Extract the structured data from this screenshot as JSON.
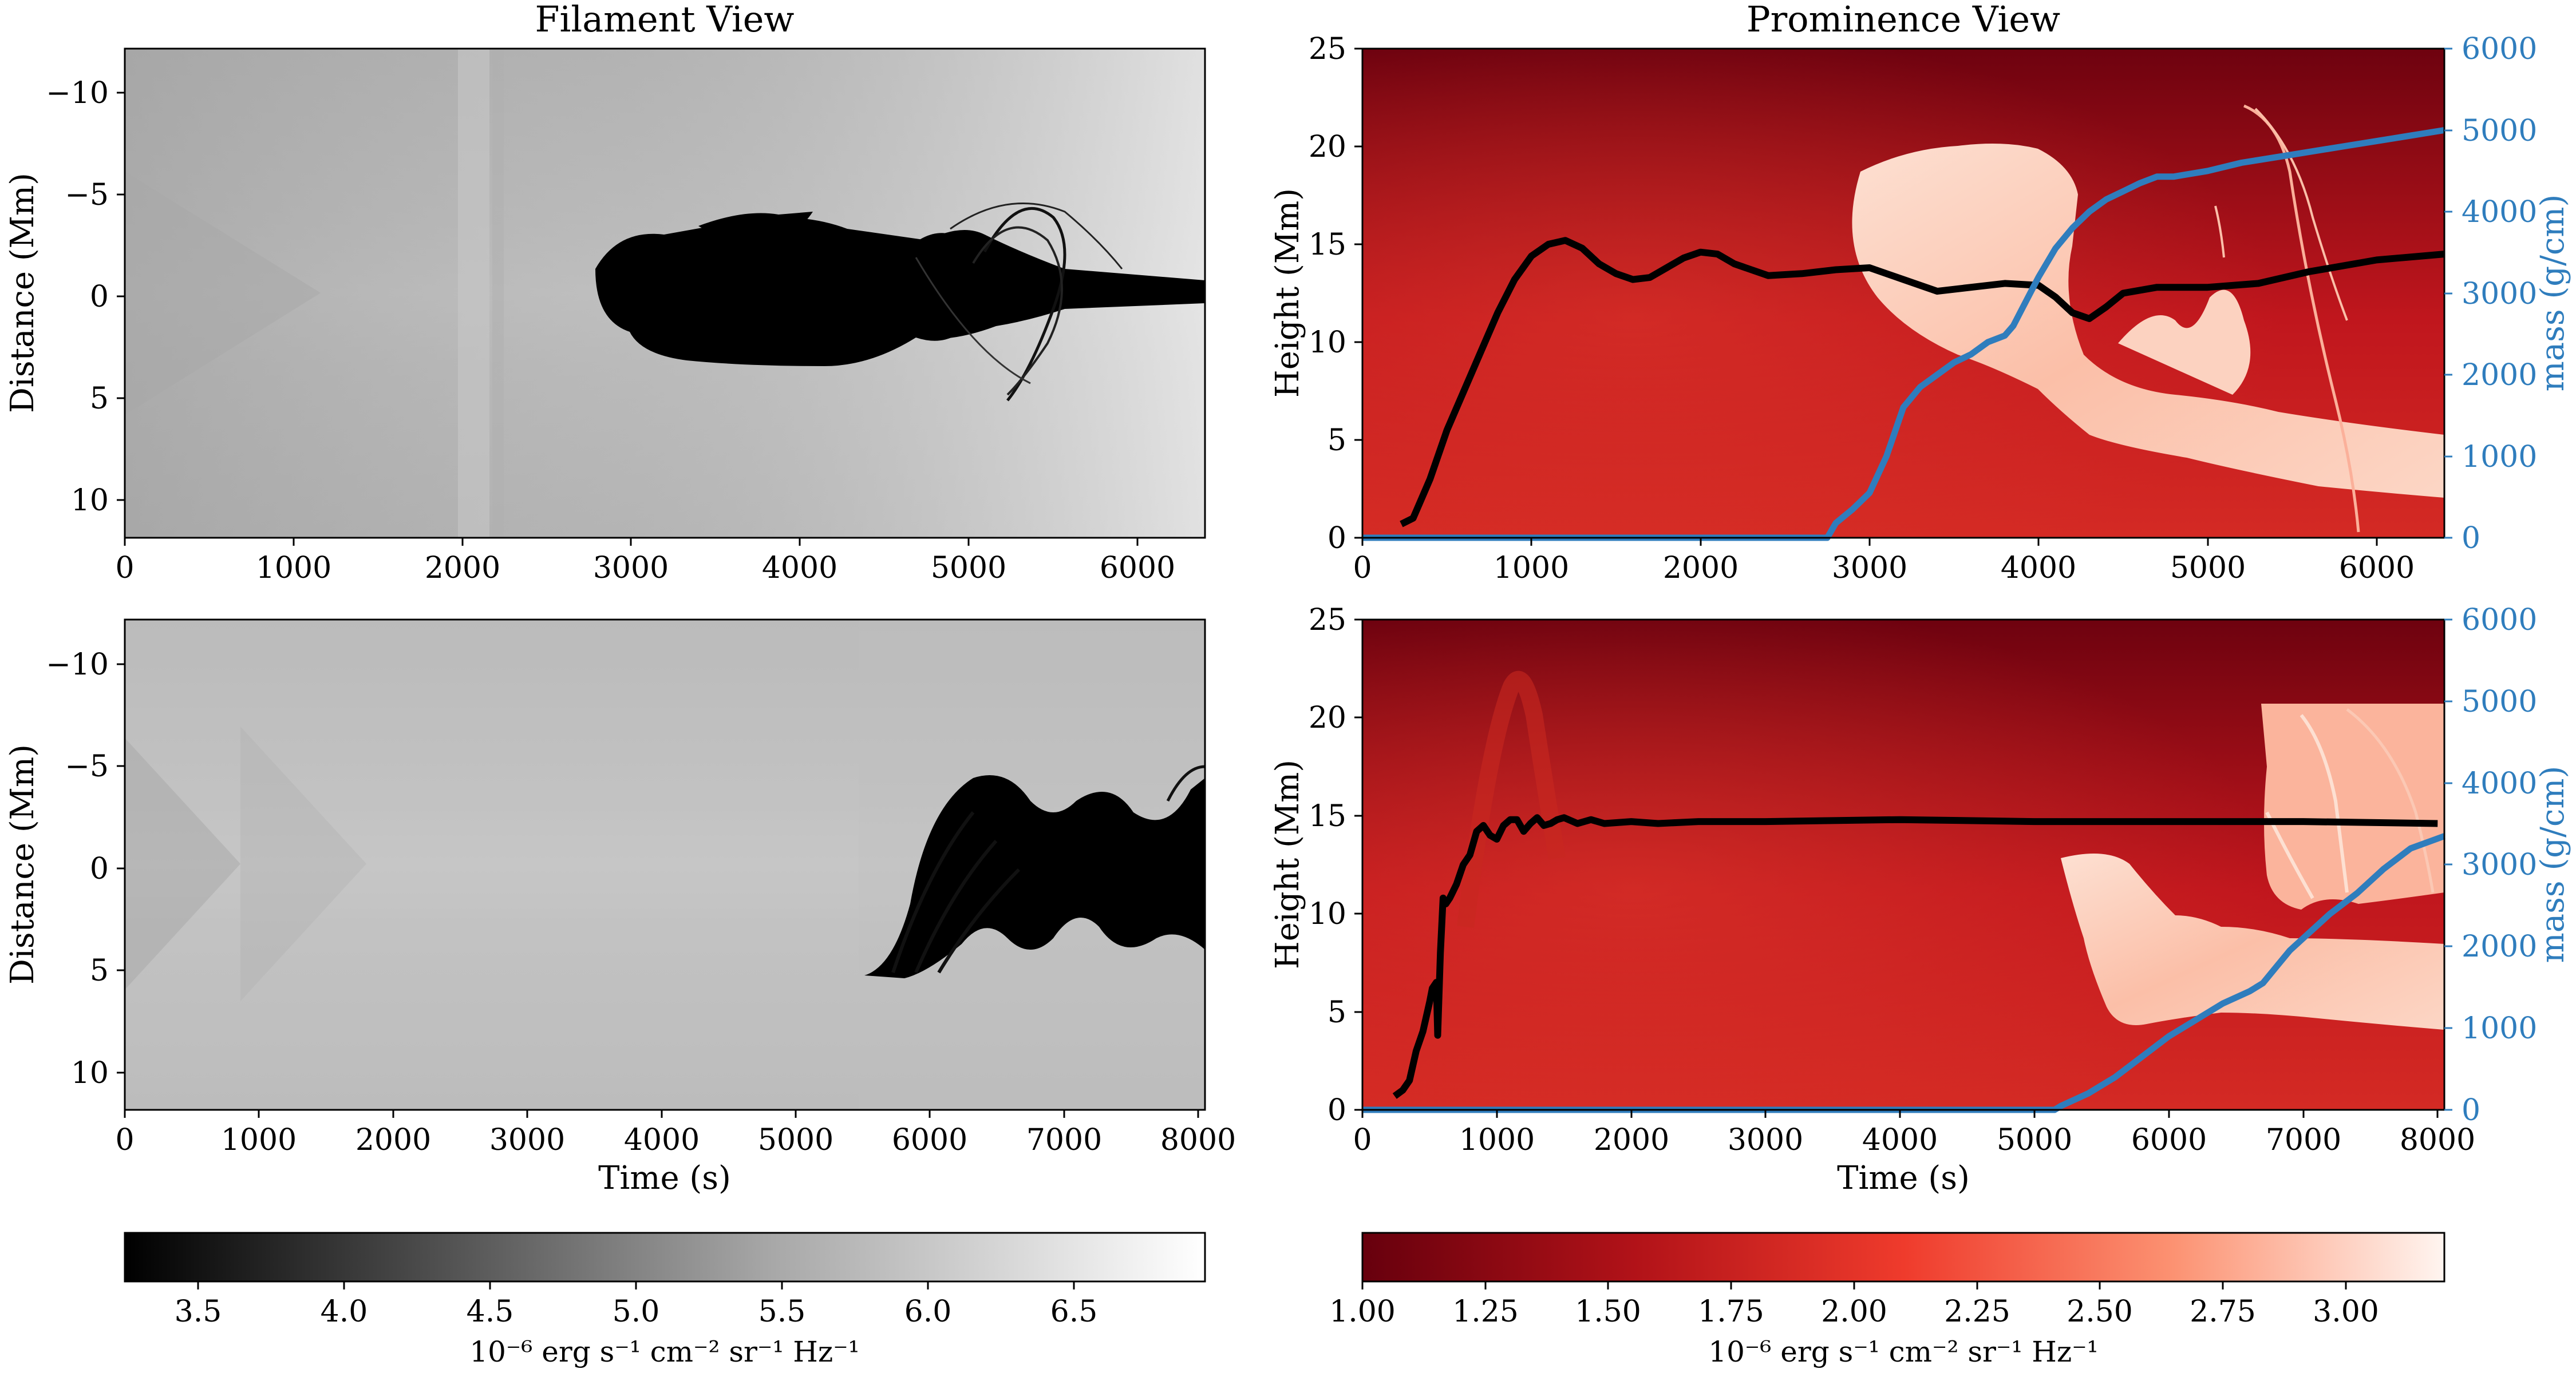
{
  "titles": {
    "left": "Filament View",
    "right": "Prominence View"
  },
  "colors": {
    "mass_line": "#2f7dbd",
    "height_line": "#000000",
    "mass_axis": "#2f7dbd",
    "reds_low": "#67000d",
    "reds_high": "#fff5f0"
  },
  "colorbars": [
    {
      "label": "10⁻⁶ erg s⁻¹ cm⁻² sr⁻¹ Hz⁻¹",
      "ticks": [
        "3.5",
        "4.0",
        "4.5",
        "5.0",
        "5.5",
        "6.0",
        "6.5"
      ],
      "range": [
        3.25,
        6.95
      ],
      "colormap": "greys"
    },
    {
      "label": "10⁻⁶ erg s⁻¹ cm⁻² sr⁻¹ Hz⁻¹",
      "ticks": [
        "1.00",
        "1.25",
        "1.50",
        "1.75",
        "2.00",
        "2.25",
        "2.50",
        "2.75",
        "3.00"
      ],
      "range": [
        1.0,
        3.2
      ],
      "colormap": "reds"
    }
  ],
  "chart_data": [
    {
      "type": "heatmap",
      "panel": "top-left",
      "title": "Filament View",
      "xlabel": "",
      "ylabel": "Distance (Mm)",
      "xlim": [
        0,
        6400
      ],
      "ylim": [
        12,
        -12
      ],
      "xticks": [
        "0",
        "1000",
        "2000",
        "3000",
        "4000",
        "5000",
        "6000"
      ],
      "yticks": [
        "−10",
        "−5",
        "0",
        "5",
        "10"
      ]
    },
    {
      "type": "heatmap",
      "panel": "bottom-left",
      "xlabel": "Time (s)",
      "ylabel": "Distance (Mm)",
      "xlim": [
        0,
        8050
      ],
      "ylim": [
        12,
        -12
      ],
      "xticks": [
        "0",
        "1000",
        "2000",
        "3000",
        "4000",
        "5000",
        "6000",
        "7000",
        "8000"
      ],
      "yticks": [
        "−10",
        "−5",
        "0",
        "5",
        "10"
      ]
    },
    {
      "type": "line",
      "panel": "top-right",
      "title": "Prominence View",
      "xlabel": "",
      "ylabel": "Height (Mm)",
      "y2label": "mass (g/cm)",
      "xlim": [
        0,
        6400
      ],
      "ylim": [
        0,
        25
      ],
      "y2lim": [
        0,
        6000
      ],
      "xticks": [
        "0",
        "1000",
        "2000",
        "3000",
        "4000",
        "5000",
        "6000"
      ],
      "yticks": [
        "0",
        "5",
        "10",
        "15",
        "20",
        "25"
      ],
      "y2ticks": [
        "0",
        "1000",
        "2000",
        "3000",
        "4000",
        "5000",
        "6000"
      ],
      "series": [
        {
          "axis": "left",
          "x": [
            230,
            300,
            400,
            500,
            600,
            700,
            800,
            900,
            1000,
            1100,
            1200,
            1300,
            1400,
            1500,
            1600,
            1700,
            1800,
            1900,
            2000,
            2100,
            2200,
            2400,
            2600,
            2800,
            3000,
            3200,
            3400,
            3600,
            3800,
            4000,
            4100,
            4200,
            4300,
            4400,
            4500,
            4700,
            5000,
            5300,
            5600,
            6000,
            6400
          ],
          "y": [
            0.7,
            1.0,
            3.0,
            5.5,
            7.5,
            9.5,
            11.5,
            13.2,
            14.4,
            15.0,
            15.2,
            14.8,
            14.0,
            13.5,
            13.2,
            13.3,
            13.8,
            14.3,
            14.6,
            14.5,
            14.0,
            13.4,
            13.5,
            13.7,
            13.8,
            13.2,
            12.6,
            12.8,
            13.0,
            12.9,
            12.3,
            11.5,
            11.2,
            11.8,
            12.5,
            12.8,
            12.8,
            13.0,
            13.6,
            14.2,
            14.5
          ]
        },
        {
          "axis": "right",
          "x": [
            0,
            2750,
            2800,
            2900,
            3000,
            3100,
            3200,
            3300,
            3400,
            3500,
            3600,
            3700,
            3800,
            3850,
            3900,
            4000,
            4100,
            4200,
            4300,
            4400,
            4500,
            4600,
            4700,
            4800,
            5000,
            5200,
            5500,
            5800,
            6100,
            6400
          ],
          "y": [
            0,
            0,
            180,
            350,
            550,
            1000,
            1600,
            1850,
            2000,
            2150,
            2250,
            2400,
            2480,
            2600,
            2800,
            3200,
            3550,
            3800,
            4000,
            4150,
            4250,
            4350,
            4430,
            4430,
            4500,
            4600,
            4700,
            4800,
            4900,
            5000
          ]
        }
      ]
    },
    {
      "type": "line",
      "panel": "bottom-right",
      "xlabel": "Time (s)",
      "ylabel": "Height (Mm)",
      "y2label": "mass (g/cm)",
      "xlim": [
        0,
        8050
      ],
      "ylim": [
        0,
        25
      ],
      "y2lim": [
        0,
        6000
      ],
      "xticks": [
        "0",
        "1000",
        "2000",
        "3000",
        "4000",
        "5000",
        "6000",
        "7000",
        "8000"
      ],
      "yticks": [
        "0",
        "5",
        "10",
        "15",
        "20",
        "25"
      ],
      "y2ticks": [
        "0",
        "1000",
        "2000",
        "3000",
        "4000",
        "5000",
        "6000"
      ],
      "series": [
        {
          "axis": "left",
          "x": [
            240,
            300,
            350,
            400,
            450,
            500,
            520,
            550,
            560,
            580,
            600,
            620,
            650,
            700,
            750,
            800,
            850,
            900,
            950,
            1000,
            1050,
            1100,
            1150,
            1200,
            1250,
            1300,
            1350,
            1400,
            1450,
            1500,
            1600,
            1700,
            1800,
            2000,
            2200,
            2500,
            3000,
            4000,
            5000,
            6000,
            7000,
            8000
          ],
          "y": [
            0.7,
            1.0,
            1.5,
            3.0,
            4.0,
            5.5,
            6.2,
            6.5,
            3.8,
            8.0,
            10.8,
            10.5,
            10.8,
            11.5,
            12.5,
            13.0,
            14.2,
            14.5,
            14.0,
            13.8,
            14.5,
            14.8,
            14.8,
            14.2,
            14.6,
            14.9,
            14.5,
            14.6,
            14.8,
            14.9,
            14.6,
            14.8,
            14.6,
            14.7,
            14.6,
            14.7,
            14.7,
            14.8,
            14.7,
            14.7,
            14.7,
            14.6
          ]
        },
        {
          "axis": "right",
          "x": [
            0,
            5150,
            5200,
            5400,
            5600,
            5800,
            6000,
            6200,
            6400,
            6600,
            6700,
            6800,
            6900,
            7000,
            7200,
            7400,
            7600,
            7800,
            8050
          ],
          "y": [
            0,
            0,
            50,
            200,
            400,
            650,
            900,
            1100,
            1300,
            1450,
            1550,
            1750,
            1950,
            2100,
            2400,
            2650,
            2950,
            3200,
            3350
          ]
        }
      ]
    }
  ]
}
